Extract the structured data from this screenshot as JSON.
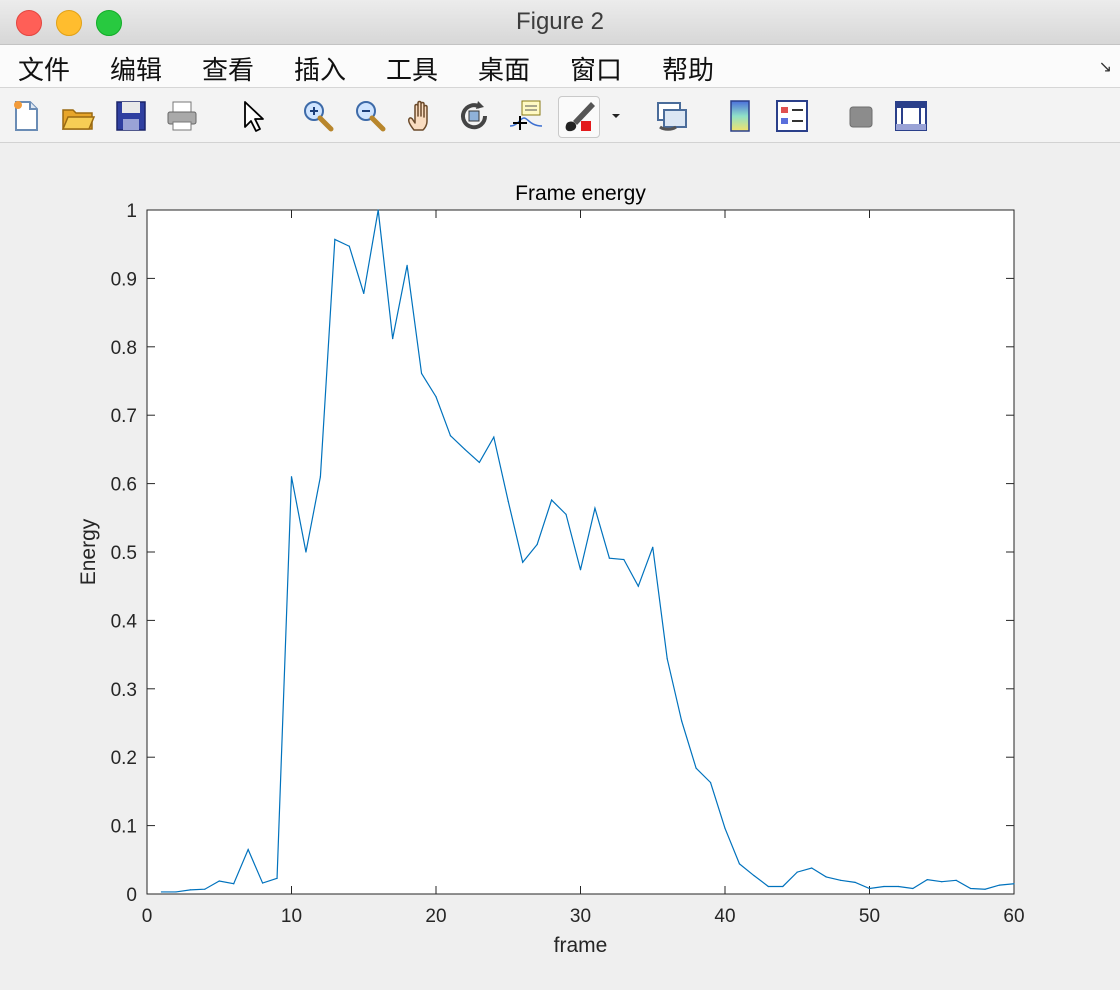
{
  "window": {
    "title": "Figure 2"
  },
  "menu": {
    "items": [
      "文件",
      "编辑",
      "查看",
      "插入",
      "工具",
      "桌面",
      "窗口",
      "帮助"
    ]
  },
  "toolbar": {
    "icons": [
      "new-figure-icon",
      "open-file-icon",
      "save-icon",
      "print-icon",
      "pointer-icon",
      "zoom-in-icon",
      "zoom-out-icon",
      "pan-icon",
      "rotate-3d-icon",
      "data-cursor-icon",
      "brush-icon",
      "link-plot-icon",
      "colorbar-icon",
      "legend-icon",
      "hide-plot-tools-icon",
      "show-plot-tools-icon"
    ]
  },
  "chart_data": {
    "type": "line",
    "title": "Frame energy",
    "xlabel": "frame",
    "ylabel": "Energy",
    "xlim": [
      0,
      60
    ],
    "ylim": [
      0,
      1
    ],
    "xticks": [
      "0",
      "10",
      "20",
      "30",
      "40",
      "50",
      "60"
    ],
    "yticks": [
      "0",
      "0.1",
      "0.2",
      "0.3",
      "0.4",
      "0.5",
      "0.6",
      "0.7",
      "0.8",
      "0.9",
      "1"
    ],
    "grid": false,
    "line_color": "#0072bd",
    "series": [
      {
        "x": [
          1,
          2,
          3,
          4,
          5,
          6,
          7,
          8,
          9,
          10,
          11,
          12,
          13,
          14,
          15,
          16,
          17,
          18,
          19,
          20,
          21,
          22,
          23,
          24,
          25,
          26,
          27,
          28,
          29,
          30,
          31,
          32,
          33,
          34,
          35,
          36,
          37,
          38,
          39,
          40,
          41,
          42,
          43,
          44,
          45,
          46,
          47,
          48,
          49,
          50,
          51,
          52,
          53,
          54,
          55,
          56,
          57,
          58,
          59,
          60
        ],
        "values": [
          0.003,
          0.003,
          0.006,
          0.007,
          0.019,
          0.015,
          0.065,
          0.016,
          0.023,
          0.61,
          0.5,
          0.61,
          0.957,
          0.947,
          0.878,
          1.0,
          0.812,
          0.919,
          0.761,
          0.727,
          0.67,
          0.65,
          0.631,
          0.668,
          0.574,
          0.485,
          0.511,
          0.576,
          0.555,
          0.474,
          0.564,
          0.491,
          0.489,
          0.45,
          0.507,
          0.344,
          0.253,
          0.184,
          0.163,
          0.096,
          0.044,
          0.027,
          0.011,
          0.011,
          0.032,
          0.038,
          0.025,
          0.02,
          0.017,
          0.008,
          0.011,
          0.011,
          0.008,
          0.021,
          0.018,
          0.02,
          0.008,
          0.007,
          0.013,
          0.015
        ]
      }
    ]
  }
}
